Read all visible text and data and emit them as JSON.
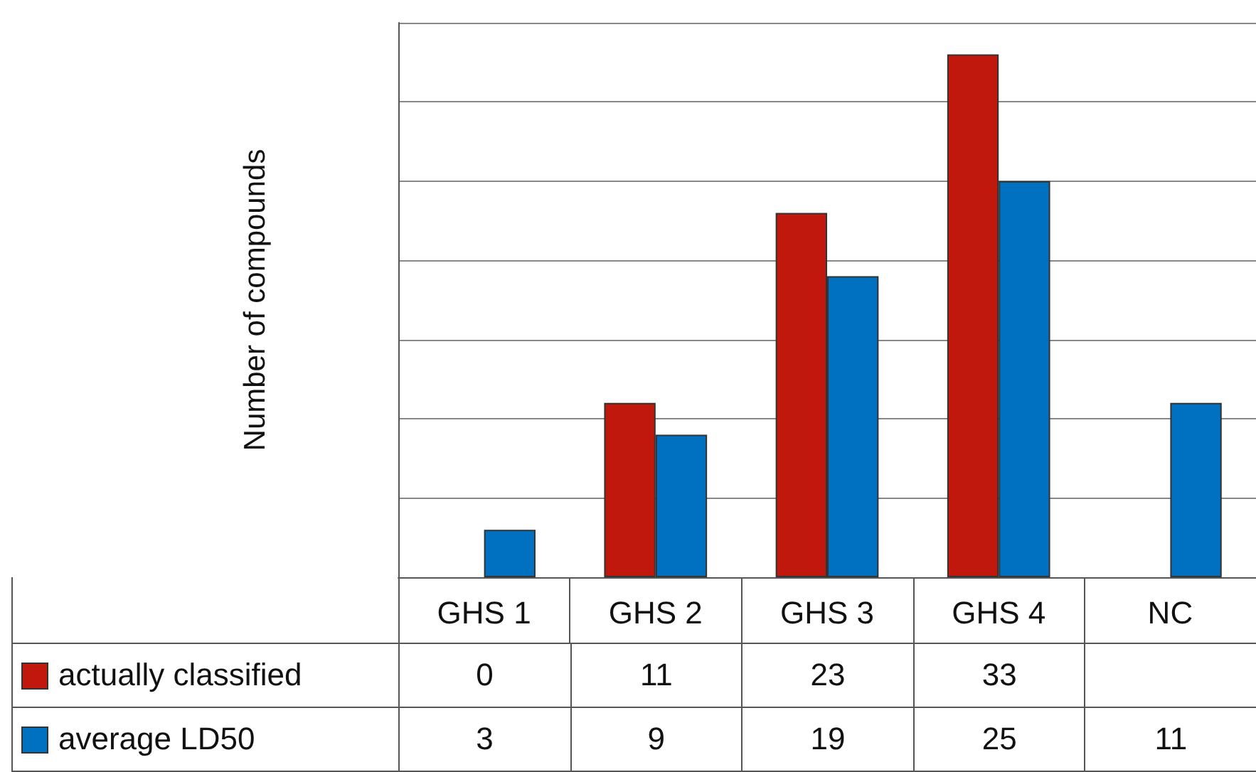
{
  "chart_data": {
    "type": "bar",
    "ylabel": "Number of compounds",
    "categories": [
      "GHS 1",
      "GHS 2",
      "GHS 3",
      "GHS 4",
      "NC"
    ],
    "series": [
      {
        "name": "actually classified",
        "color": "#c0180c",
        "values": [
          0,
          11,
          23,
          33,
          null
        ]
      },
      {
        "name": "average LD50",
        "color": "#0070c0",
        "values": [
          3,
          9,
          19,
          25,
          11
        ]
      }
    ],
    "ylim": [
      0,
      35
    ],
    "yticks": [
      {
        "value": 0,
        "label": null
      },
      {
        "value": 5,
        "label": null
      },
      {
        "value": 10,
        "label": null
      },
      {
        "value": 15,
        "label": null
      },
      {
        "value": 20,
        "label": null
      },
      {
        "value": 25,
        "label": null
      },
      {
        "value": 30,
        "label": null
      },
      {
        "value": 35,
        "label": null
      }
    ],
    "tick_labels": "x",
    "grid": "y",
    "legend": "bottom",
    "data_labels": true
  }
}
